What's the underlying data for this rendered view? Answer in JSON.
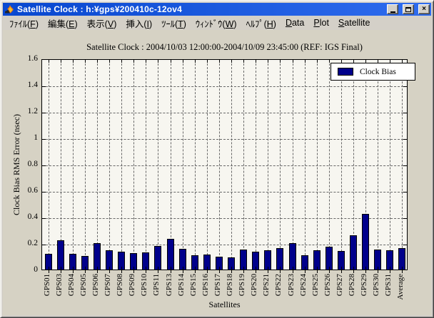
{
  "window": {
    "title": "Satellite Clock : h:¥gps¥200410c-12ov4",
    "controls": {
      "minimize": "minimize",
      "maximize": "maximize",
      "close": "×"
    }
  },
  "menu": {
    "items": [
      {
        "text": "ﾌｧｲﾙ(F)",
        "hotkey": "F"
      },
      {
        "text": "編集(E)",
        "hotkey": "E"
      },
      {
        "text": "表示(V)",
        "hotkey": "V"
      },
      {
        "text": "挿入(I)",
        "hotkey": "I"
      },
      {
        "text": "ﾂｰﾙ(T)",
        "hotkey": "T"
      },
      {
        "text": "ｳｨﾝﾄﾞｳ(W)",
        "hotkey": "W"
      },
      {
        "text": "ﾍﾙﾌﾟ(H)",
        "hotkey": "H"
      },
      {
        "text": "Data",
        "hotkey": "D"
      },
      {
        "text": "Plot",
        "hotkey": "P"
      },
      {
        "text": "Satellite",
        "hotkey": "S"
      }
    ]
  },
  "chart_data": {
    "type": "bar",
    "title": "Satellite Clock : 2004/10/03 12:00:00-2004/10/09 23:45:00 (REF: IGS Final)",
    "xlabel": "Satellites",
    "ylabel": "Clock Bias RMS Error (nsec)",
    "ylim": [
      0,
      1.6
    ],
    "yticks": [
      0,
      0.2,
      0.4,
      0.6,
      0.8,
      1,
      1.2,
      1.4,
      1.6
    ],
    "ytick_labels": [
      "0",
      "0.2",
      "0.4",
      "0.6",
      "0.8",
      "1",
      "1.2",
      "1.4",
      "1.6"
    ],
    "grid": true,
    "bar_color": "#00008b",
    "legend": {
      "label": "Clock Bias",
      "position": "top-right",
      "color": "#00008b"
    },
    "categories": [
      "GPS01",
      "GPS03",
      "GPS04",
      "GPS05",
      "GPS06",
      "GPS07",
      "GPS08",
      "GPS09",
      "GPS10",
      "GPS11",
      "GPS13",
      "GPS14",
      "GPS15",
      "GPS16",
      "GPS17",
      "GPS18",
      "GPS19",
      "GPS20",
      "GPS21",
      "GPS22",
      "GPS23",
      "GPS24",
      "GPS25",
      "GPS26",
      "GPS27",
      "GPS28",
      "GPS29",
      "GPS30",
      "GPS31",
      "Average"
    ],
    "values": [
      0.12,
      0.22,
      0.12,
      0.1,
      0.2,
      0.145,
      0.135,
      0.125,
      0.13,
      0.18,
      0.235,
      0.155,
      0.11,
      0.115,
      0.095,
      0.09,
      0.15,
      0.135,
      0.145,
      0.16,
      0.2,
      0.11,
      0.145,
      0.175,
      0.14,
      0.26,
      0.42,
      0.15,
      0.145,
      0.16
    ]
  }
}
